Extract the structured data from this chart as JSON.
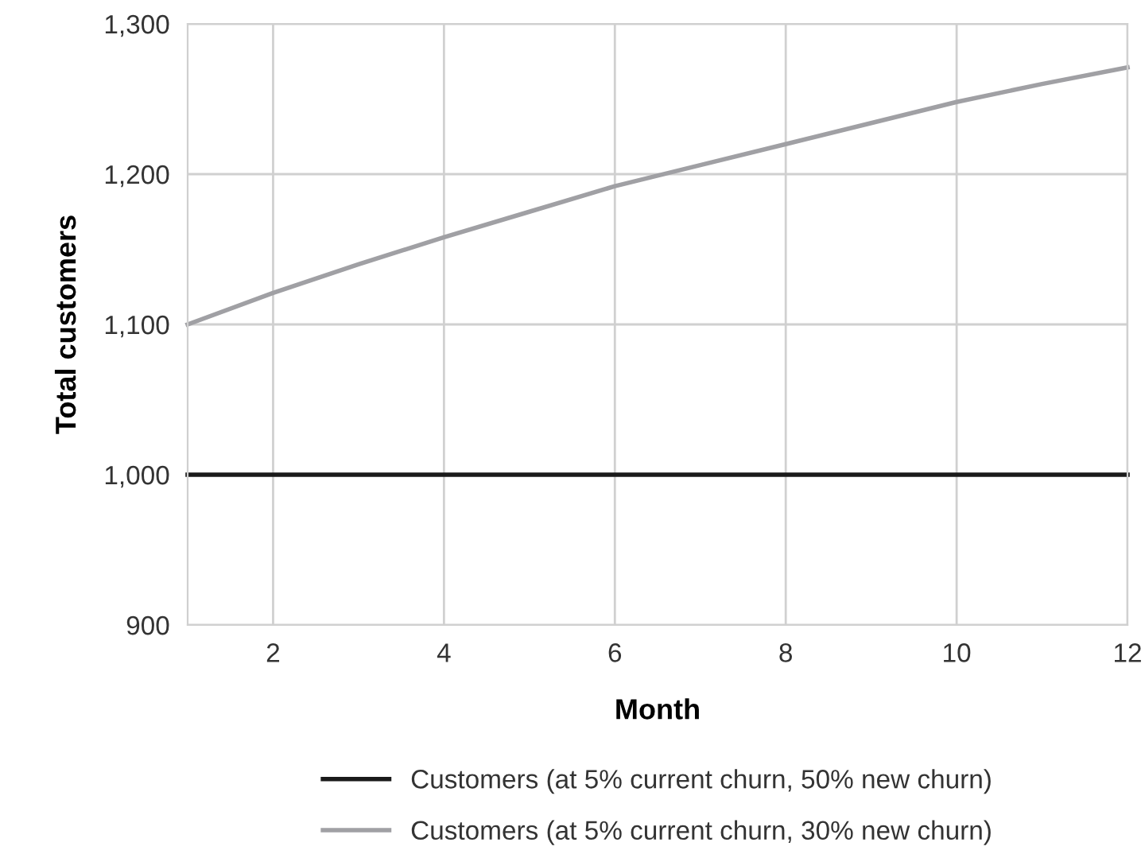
{
  "chart_data": {
    "type": "line",
    "xlabel": "Month",
    "ylabel": "Total customers",
    "x": [
      1,
      2,
      3,
      4,
      5,
      6,
      7,
      8,
      9,
      10,
      11,
      12
    ],
    "series": [
      {
        "name": "Customers (at 5% current churn, 50% new churn)",
        "color": "#1a1a1a",
        "values": [
          1000,
          1000,
          1000,
          1000,
          1000,
          1000,
          1000,
          1000,
          1000,
          1000,
          1000,
          1000
        ]
      },
      {
        "name": "Customers (at 5% current churn, 30% new churn)",
        "color": "#a0a0a4",
        "values": [
          1100,
          1121,
          1140,
          1158,
          1175,
          1192,
          1206,
          1220,
          1234,
          1248,
          1260,
          1271
        ]
      }
    ],
    "xlim": [
      1,
      12
    ],
    "xticks": [
      2,
      4,
      6,
      8,
      10,
      12
    ],
    "ylim": [
      900,
      1300
    ],
    "yticks": [
      {
        "value": 900,
        "label": "900"
      },
      {
        "value": 1000,
        "label": "1,000"
      },
      {
        "value": 1100,
        "label": "1,100"
      },
      {
        "value": 1200,
        "label": "1,200"
      },
      {
        "value": 1300,
        "label": "1,300"
      }
    ],
    "grid": true,
    "legend": "bottom",
    "marker": "none",
    "line_style": "solid"
  }
}
